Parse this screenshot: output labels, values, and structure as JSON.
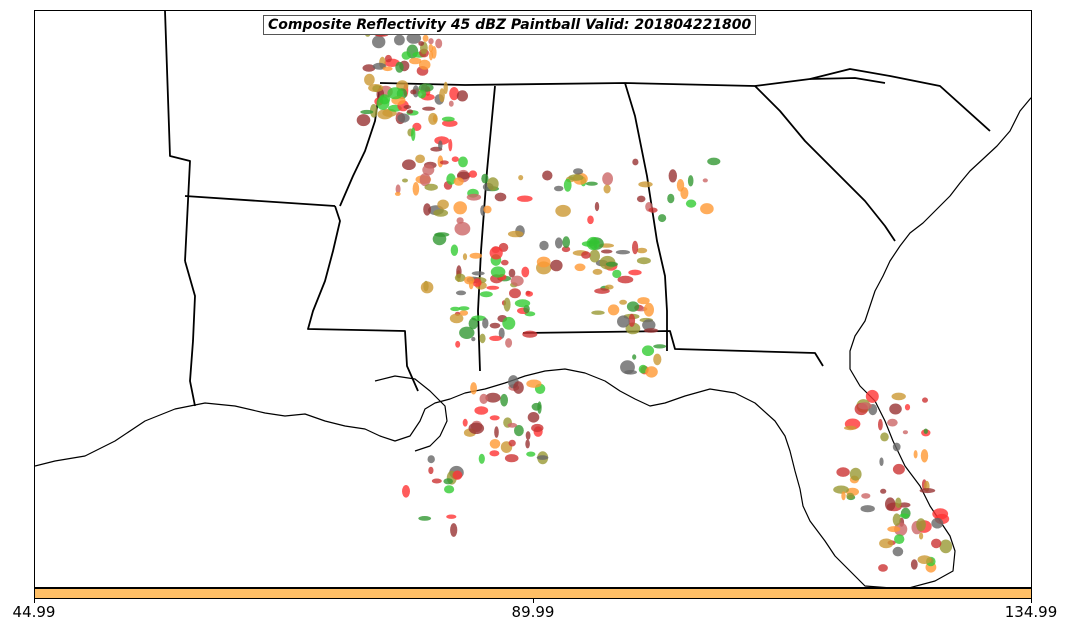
{
  "title": "Composite Reflectivity 45 dBZ Paintball Valid: 201804221800",
  "colorbar": {
    "color": "#ffbf66",
    "ticks": [
      "44.99",
      "89.99",
      "134.99"
    ],
    "range": [
      44.99,
      134.99
    ]
  },
  "paintball_colors": [
    "#ff3333",
    "#cc3333",
    "#993333",
    "#ff9933",
    "#cc9933",
    "#33cc33",
    "#339933",
    "#999933",
    "#666666",
    "#cc6666"
  ],
  "map": {
    "projection": "Lambert Conformal",
    "background_color": "#ffffff",
    "boundary_color": "#000000",
    "states_visible": [
      "Louisiana",
      "Mississippi",
      "Alabama",
      "Georgia",
      "South Carolina",
      "Florida",
      "Arkansas",
      "Tennessee",
      "Texas"
    ]
  }
}
